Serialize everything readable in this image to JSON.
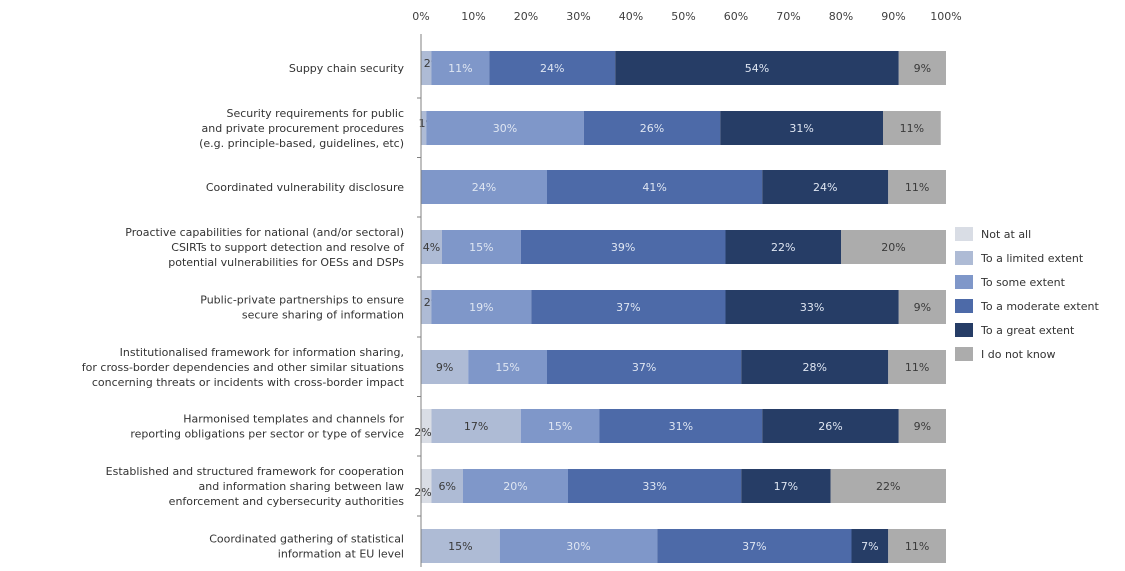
{
  "chart_data": {
    "type": "bar",
    "orientation": "horizontal",
    "stacked": "100%",
    "title": "",
    "xlabel": "",
    "ylabel": "",
    "xlim": [
      0,
      100
    ],
    "x_ticks": [
      "0%",
      "10%",
      "20%",
      "30%",
      "40%",
      "50%",
      "60%",
      "70%",
      "80%",
      "90%",
      "100%"
    ],
    "grid": false,
    "legend_position": "right",
    "categories": [
      [
        "Suppy chain security"
      ],
      [
        "Security requirements for public",
        "and private procurement procedures",
        "(e.g. principle-based, guidelines, etc)"
      ],
      [
        "Coordinated vulnerability disclosure"
      ],
      [
        "Proactive capabilities for national (and/or sectoral)",
        "CSIRTs to support detection and resolve of",
        "potential vulnerabilities for OESs and DSPs"
      ],
      [
        "Public-private partnerships to ensure",
        "secure sharing of information"
      ],
      [
        "Institutionalised framework for information sharing,",
        "for cross-border dependencies and other similar situations",
        "concerning threats or incidents with cross-border impact"
      ],
      [
        "Harmonised templates and channels for",
        "reporting obligations per sector or type of service"
      ],
      [
        "Established and structured framework for cooperation",
        "and information sharing between law",
        "enforcement and cybersecurity authorities"
      ],
      [
        "Coordinated gathering of statistical",
        "information at EU level"
      ]
    ],
    "series": [
      {
        "name": "Not at all",
        "color": "#d9dde5",
        "values": [
          0,
          0,
          0,
          0,
          0,
          0,
          2,
          2,
          0
        ],
        "labels": [
          "",
          "",
          "",
          "",
          "",
          "",
          "2%",
          "2%",
          ""
        ]
      },
      {
        "name": "To a limited extent",
        "color": "#aebbd5",
        "values": [
          2,
          1,
          0,
          4,
          2,
          9,
          17,
          6,
          15
        ],
        "labels": [
          "2%",
          "1%",
          "",
          "4%",
          "2%",
          "9%",
          "17%",
          "6%",
          "15%"
        ]
      },
      {
        "name": "To some extent",
        "color": "#7f97c9",
        "values": [
          11,
          30,
          24,
          15,
          19,
          15,
          15,
          20,
          30
        ],
        "labels": [
          "11%",
          "30%",
          "24%",
          "15%",
          "19%",
          "15%",
          "15%",
          "20%",
          "30%"
        ]
      },
      {
        "name": "To a moderate extent",
        "color": "#4d6aa8",
        "values": [
          24,
          26,
          41,
          39,
          37,
          37,
          31,
          33,
          37
        ],
        "labels": [
          "24%",
          "26%",
          "41%",
          "39%",
          "37%",
          "37%",
          "31%",
          "33%",
          "37%"
        ]
      },
      {
        "name": "To a great extent",
        "color": "#263d66",
        "values": [
          54,
          31,
          24,
          22,
          33,
          28,
          26,
          17,
          7
        ],
        "labels": [
          "54%",
          "31%",
          "24%",
          "22%",
          "33%",
          "28%",
          "26%",
          "17%",
          "7%"
        ]
      },
      {
        "name": "I do not know",
        "color": "#acacac",
        "values": [
          9,
          11,
          11,
          20,
          9,
          11,
          9,
          22,
          11
        ],
        "labels": [
          "9%",
          "11%",
          "11%",
          "20%",
          "9%",
          "11%",
          "9%",
          "22%",
          "11%"
        ]
      }
    ]
  }
}
